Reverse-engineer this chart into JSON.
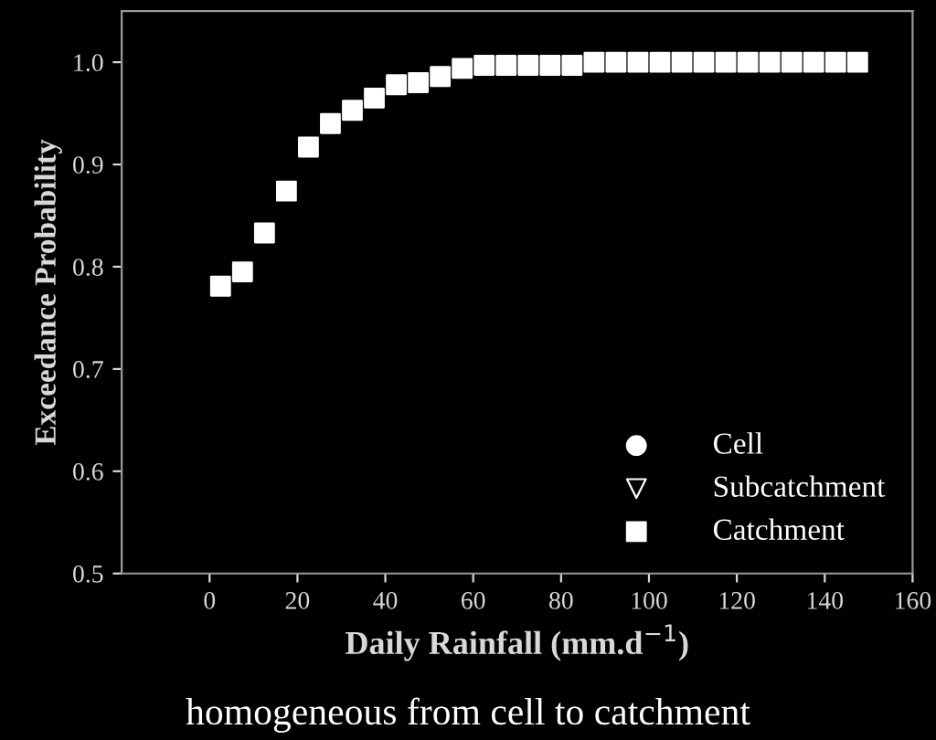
{
  "chart_data": {
    "type": "scatter",
    "xlabel": "Daily Rainfall (mm.d$^{−1}$)",
    "ylabel": "Exceedance Probability",
    "annotations": [
      "homogeneous from cell to catchment"
    ],
    "x": [
      2.5,
      7.5,
      12.5,
      17.5,
      22.5,
      27.5,
      32.5,
      37.5,
      42.5,
      47.5,
      52.5,
      57.5,
      62.5,
      67.5,
      72.5,
      77.5,
      82.5,
      87.5,
      92.5,
      97.5,
      102.5,
      107.5,
      112.5,
      117.5,
      122.5,
      127.5,
      132.5,
      137.5,
      142.5,
      147.5
    ],
    "series": [
      {
        "name": "Cell",
        "color": "#ffffff",
        "marker": "circle",
        "values": [
          null,
          null,
          null,
          null,
          null,
          null,
          null,
          null,
          null,
          null,
          null,
          null,
          null,
          null,
          null,
          null,
          null,
          null,
          null,
          null,
          null,
          null,
          null,
          null,
          null,
          null,
          null,
          null,
          null,
          null
        ]
      },
      {
        "name": "Subcatchment",
        "color": "#ffffff",
        "marker": "triangle",
        "values": [
          null,
          null,
          null,
          null,
          null,
          null,
          null,
          null,
          null,
          null,
          null,
          null,
          null,
          null,
          null,
          null,
          null,
          null,
          null,
          null,
          null,
          null,
          null,
          null,
          null,
          null,
          null,
          null,
          null,
          null
        ]
      },
      {
        "name": "Catchment",
        "color": "#ffffff",
        "marker": "square",
        "values": [
          0.781,
          0.795,
          0.833,
          0.874,
          0.917,
          0.94,
          0.953,
          0.965,
          0.978,
          0.98,
          0.986,
          0.994,
          0.997,
          0.997,
          0.997,
          0.997,
          0.997,
          1.0,
          1.0,
          1.0,
          1.0,
          1.0,
          1.0,
          1.0,
          1.0,
          1.0,
          1.0,
          1.0,
          1.0,
          1.0
        ]
      }
    ],
    "xlim": [
      -20,
      160
    ],
    "xticks": [
      0,
      20,
      40,
      60,
      80,
      100,
      120,
      140,
      160
    ],
    "ylim": [
      0.5,
      1.05
    ],
    "yticks": [
      {
        "value": 0.5,
        "label": "0.5"
      },
      {
        "value": 0.6,
        "label": "0.6"
      },
      {
        "value": 0.7,
        "label": "0.7"
      },
      {
        "value": 0.8,
        "label": "0.8"
      },
      {
        "value": 0.9,
        "label": "0.9"
      },
      {
        "value": 1.0,
        "label": "1.0"
      }
    ],
    "grid": false,
    "legend": "bottom right"
  }
}
